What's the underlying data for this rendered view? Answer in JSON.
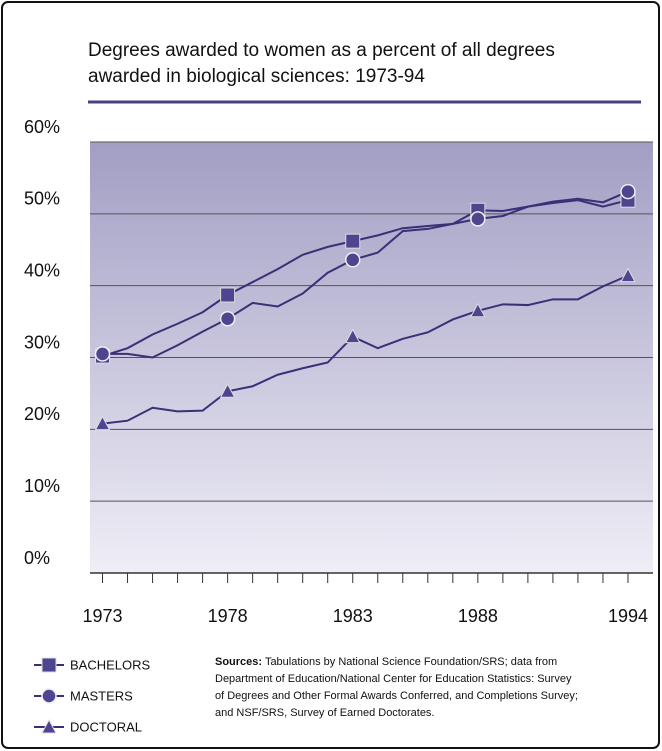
{
  "chart_data": {
    "type": "line",
    "title": "Degrees awarded to women as a percent of all degrees awarded in biological sciences: 1973-94",
    "x": [
      1973,
      1974,
      1975,
      1976,
      1977,
      1978,
      1979,
      1980,
      1981,
      1982,
      1983,
      1984,
      1985,
      1986,
      1987,
      1988,
      1989,
      1990,
      1991,
      1992,
      1993,
      1994
    ],
    "series": [
      {
        "name": "BACHELORS",
        "color": "#3b2f77",
        "marker": "square",
        "values": [
          30.2,
          31.3,
          33.2,
          34.7,
          36.3,
          38.7,
          40.5,
          42.3,
          44.3,
          45.4,
          46.2,
          47.0,
          48.0,
          48.3,
          48.6,
          50.5,
          50.4,
          51.0,
          51.5,
          51.9,
          51.0,
          51.9
        ]
      },
      {
        "name": "MASTERS",
        "color": "#3b2f77",
        "marker": "circle",
        "values": [
          30.5,
          30.5,
          30.0,
          31.7,
          33.6,
          35.4,
          37.6,
          37.1,
          38.9,
          41.8,
          43.6,
          44.6,
          47.6,
          47.9,
          48.6,
          49.3,
          49.7,
          51.0,
          51.7,
          52.1,
          51.6,
          53.1
        ]
      },
      {
        "name": "DOCTORAL",
        "color": "#3b2f77",
        "marker": "triangle",
        "values": [
          20.8,
          21.2,
          23.0,
          22.5,
          22.6,
          25.3,
          26.0,
          27.6,
          28.5,
          29.3,
          32.9,
          31.3,
          32.6,
          33.5,
          35.3,
          36.5,
          37.4,
          37.3,
          38.1,
          38.1,
          39.9,
          41.4
        ]
      }
    ],
    "xlim": [
      1972.5,
      1995
    ],
    "xticks": [
      1973,
      1978,
      1983,
      1988,
      1994
    ],
    "ylim": [
      0,
      60
    ],
    "yticks": [
      {
        "value": 0,
        "label": "0%"
      },
      {
        "value": 10,
        "label": "10%"
      },
      {
        "value": 20,
        "label": "20%"
      },
      {
        "value": 30,
        "label": "30%"
      },
      {
        "value": 40,
        "label": "40%"
      },
      {
        "value": 50,
        "label": "50%"
      },
      {
        "value": 60,
        "label": "60%"
      }
    ],
    "grid": true,
    "sources_label": "Sources:",
    "sources_lines": [
      "Tabulations by National Science Foundation/SRS; data from",
      "Department of Education/National Center for Education Statistics: Survey",
      "of Degrees and Other Formal Awards Conferred, and Completions Survey;",
      "and NSF/SRS, Survey of Earned Doctorates."
    ]
  }
}
